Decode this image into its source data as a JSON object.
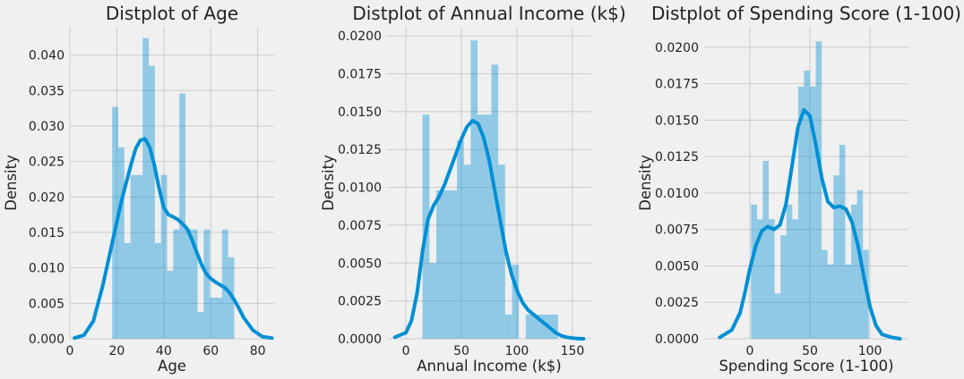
{
  "chart_data": [
    {
      "type": "bar",
      "title": "Distplot of Age",
      "xlabel": "Age",
      "ylabel": "Density",
      "xlim": [
        0,
        87
      ],
      "ylim": [
        0,
        0.044
      ],
      "xticks": [
        0,
        20,
        40,
        60,
        80
      ],
      "yticks": [
        0.0,
        0.005,
        0.01,
        0.015,
        0.02,
        0.025,
        0.03,
        0.035,
        0.04
      ],
      "ytick_labels": [
        "0.000",
        "0.005",
        "0.010",
        "0.015",
        "0.020",
        "0.025",
        "0.030",
        "0.035",
        "0.040"
      ],
      "grid": true,
      "histogram": {
        "bin_edges": [
          18,
          20.6,
          23.2,
          25.8,
          28.4,
          31,
          33.6,
          36.2,
          38.8,
          41.4,
          44,
          46.6,
          49.2,
          51.8,
          54.4,
          57,
          59.6,
          62.2,
          64.8,
          67.4,
          70
        ],
        "densities": [
          0.0327,
          0.027,
          0.0135,
          0.0231,
          0.0231,
          0.0424,
          0.0385,
          0.0135,
          0.0231,
          0.0096,
          0.0154,
          0.0346,
          0.0154,
          0.0154,
          0.0038,
          0.0154,
          0.0058,
          0.0058,
          0.0154,
          0.0115
        ]
      },
      "kde": {
        "x": [
          2,
          6,
          10,
          14,
          18,
          22,
          26,
          28,
          30,
          32,
          34,
          36,
          38,
          40,
          42,
          44,
          46,
          48,
          50,
          52,
          54,
          56,
          58,
          60,
          62,
          64,
          66,
          68,
          70,
          72,
          74,
          78,
          82,
          86
        ],
        "y": [
          0.0001,
          0.0005,
          0.0025,
          0.0075,
          0.0135,
          0.0195,
          0.0245,
          0.0268,
          0.028,
          0.0282,
          0.027,
          0.0245,
          0.0212,
          0.0185,
          0.0175,
          0.0172,
          0.0168,
          0.0162,
          0.0155,
          0.014,
          0.0122,
          0.0105,
          0.0092,
          0.0085,
          0.008,
          0.0076,
          0.0072,
          0.0065,
          0.0055,
          0.0043,
          0.003,
          0.0012,
          0.0003,
          0.0001
        ]
      }
    },
    {
      "type": "bar",
      "title": "Distplot of Annual Income (k$)",
      "xlabel": "Annual Income (k$)",
      "ylabel": "Density",
      "xlim": [
        -17,
        167
      ],
      "ylim": [
        0,
        0.0206
      ],
      "xticks": [
        0,
        50,
        100,
        150
      ],
      "yticks": [
        0.0,
        0.0025,
        0.005,
        0.0075,
        0.01,
        0.0125,
        0.015,
        0.0175,
        0.02
      ],
      "ytick_labels": [
        "0.0000",
        "0.0025",
        "0.0050",
        "0.0075",
        "0.0100",
        "0.0125",
        "0.0150",
        "0.0175",
        "0.0200"
      ],
      "grid": true,
      "histogram": {
        "bin_edges": [
          15,
          21.2,
          27.4,
          33.6,
          39.8,
          46,
          52.2,
          58.4,
          64.6,
          70.8,
          77,
          83.2,
          89.4,
          95.6,
          101.8,
          108,
          114.2,
          120.4,
          126.6,
          132.8,
          137
        ],
        "densities": [
          0.0148,
          0.005,
          0.0098,
          0.0098,
          0.0098,
          0.0131,
          0.0115,
          0.0197,
          0.0148,
          0.0148,
          0.0181,
          0.0115,
          0.0016,
          0.0049,
          0.0,
          0.0016,
          0.0016,
          0.0016,
          0.0016,
          0.0016
        ]
      },
      "kde": {
        "x": [
          -10,
          0,
          5,
          10,
          15,
          20,
          25,
          30,
          35,
          40,
          45,
          50,
          55,
          60,
          65,
          70,
          75,
          80,
          85,
          90,
          95,
          100,
          105,
          110,
          115,
          120,
          125,
          130,
          135,
          140,
          145,
          150,
          155,
          160
        ],
        "y": [
          0.0001,
          0.0004,
          0.0012,
          0.003,
          0.0058,
          0.0079,
          0.0088,
          0.0094,
          0.0102,
          0.0112,
          0.0122,
          0.0132,
          0.014,
          0.0144,
          0.0142,
          0.0133,
          0.0118,
          0.0098,
          0.0078,
          0.0058,
          0.0043,
          0.0032,
          0.0024,
          0.0019,
          0.0016,
          0.0013,
          0.001,
          0.0007,
          0.0004,
          0.0002,
          0.0001,
          5e-05,
          2e-05,
          0.0
        ]
      }
    },
    {
      "type": "bar",
      "title": "Distplot of Spending Score (1-100)",
      "xlabel": "Spending Score (1-100)",
      "ylabel": "Density",
      "xlim": [
        -38,
        132
      ],
      "ylim": [
        0,
        0.0214
      ],
      "xticks": [
        0,
        50,
        100
      ],
      "yticks": [
        0.0,
        0.0025,
        0.005,
        0.0075,
        0.01,
        0.0125,
        0.015,
        0.0175,
        0.02
      ],
      "ytick_labels": [
        "0.0000",
        "0.0025",
        "0.0050",
        "0.0075",
        "0.0100",
        "0.0125",
        "0.0150",
        "0.0175",
        "0.0200"
      ],
      "grid": true,
      "histogram": {
        "bin_edges": [
          1,
          5.9,
          10.8,
          15.7,
          20.6,
          25.5,
          30.4,
          35.3,
          40.2,
          45.1,
          50,
          54.9,
          59.8,
          64.7,
          69.6,
          74.5,
          79.4,
          84.3,
          89.2,
          94.1,
          99
        ],
        "densities": [
          0.0092,
          0.0082,
          0.0122,
          0.0082,
          0.0031,
          0.0071,
          0.0092,
          0.0082,
          0.0173,
          0.0184,
          0.0173,
          0.0204,
          0.0061,
          0.0051,
          0.0112,
          0.0133,
          0.0051,
          0.0092,
          0.0102,
          0.0061
        ]
      },
      "kde": {
        "x": [
          -25,
          -15,
          -8,
          -4,
          0,
          5,
          10,
          15,
          20,
          25,
          30,
          35,
          40,
          45,
          50,
          55,
          60,
          65,
          70,
          75,
          80,
          85,
          90,
          95,
          100,
          105,
          110,
          118,
          125
        ],
        "y": [
          0.0001,
          0.0006,
          0.0018,
          0.0032,
          0.0048,
          0.0064,
          0.0074,
          0.0077,
          0.0075,
          0.0078,
          0.0092,
          0.0118,
          0.0145,
          0.0157,
          0.0153,
          0.0133,
          0.011,
          0.0094,
          0.009,
          0.0091,
          0.0089,
          0.008,
          0.0064,
          0.0042,
          0.0022,
          0.0009,
          0.0003,
          0.0001,
          0.0
        ]
      }
    }
  ]
}
